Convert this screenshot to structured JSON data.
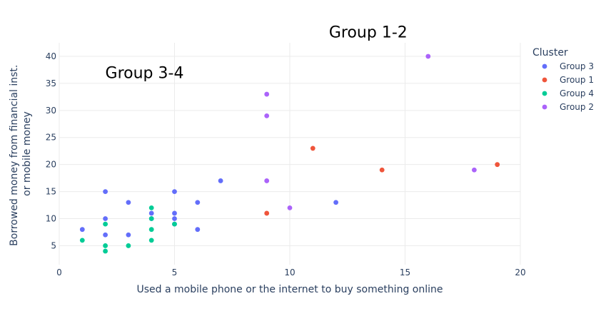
{
  "chart_data": {
    "type": "scatter",
    "xlabel": "Used a mobile phone or the internet to buy something online",
    "ylabel_lines": [
      "Borrowed money from financial inst.",
      "or mobile money"
    ],
    "xlim": [
      0,
      20
    ],
    "ylim": [
      1.5,
      42.5
    ],
    "xticks": [
      0,
      5,
      10,
      15,
      20
    ],
    "yticks": [
      5,
      10,
      15,
      20,
      25,
      30,
      35,
      40
    ],
    "grid": true,
    "legend": {
      "title": "Cluster",
      "placement": "right"
    },
    "annotations": [
      {
        "text": "Group 1-2",
        "x": 13.4,
        "y": 43.5
      },
      {
        "text": "Group 3-4",
        "x": 3.7,
        "y": 36
      }
    ],
    "series": [
      {
        "name": "Group 3",
        "color": "#636efa",
        "points": [
          [
            1,
            8
          ],
          [
            2,
            15
          ],
          [
            2,
            10
          ],
          [
            2,
            7
          ],
          [
            3,
            13
          ],
          [
            3,
            7
          ],
          [
            4,
            11
          ],
          [
            4,
            10
          ],
          [
            5,
            15
          ],
          [
            5,
            11
          ],
          [
            5,
            10
          ],
          [
            5,
            9
          ],
          [
            6,
            13
          ],
          [
            6,
            8
          ],
          [
            7,
            17
          ],
          [
            12,
            13
          ]
        ]
      },
      {
        "name": "Group 1",
        "color": "#ef553b",
        "points": [
          [
            9,
            11
          ],
          [
            11,
            23
          ],
          [
            14,
            19
          ],
          [
            19,
            20
          ]
        ]
      },
      {
        "name": "Group 4",
        "color": "#00cc96",
        "points": [
          [
            1,
            6
          ],
          [
            2,
            9
          ],
          [
            2,
            5
          ],
          [
            2,
            4
          ],
          [
            3,
            5
          ],
          [
            4,
            12
          ],
          [
            4,
            10
          ],
          [
            4,
            8
          ],
          [
            4,
            6
          ],
          [
            5,
            9
          ]
        ]
      },
      {
        "name": "Group 2",
        "color": "#ab63fa",
        "points": [
          [
            9,
            33
          ],
          [
            9,
            29
          ],
          [
            9,
            17
          ],
          [
            10,
            12
          ],
          [
            16,
            40
          ],
          [
            18,
            19
          ]
        ]
      }
    ]
  }
}
